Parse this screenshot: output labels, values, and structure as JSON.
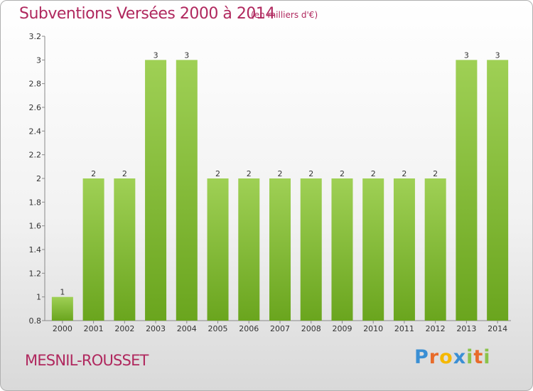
{
  "header": {
    "title": "Subventions Versées 2000 à 2014",
    "subtitle": "(en milliers d'€)"
  },
  "footer": {
    "commune": "MESNIL-ROUSSET",
    "logo": "Proxiti"
  },
  "colors": {
    "title": "#b0285e",
    "bar_top": "#9fd055",
    "bar_bottom": "#6aa51e"
  },
  "chart_data": {
    "type": "bar",
    "categories": [
      "2000",
      "2001",
      "2002",
      "2003",
      "2004",
      "2005",
      "2006",
      "2007",
      "2008",
      "2009",
      "2010",
      "2011",
      "2012",
      "2013",
      "2014"
    ],
    "values": [
      1,
      2,
      2,
      3,
      3,
      2,
      2,
      2,
      2,
      2,
      2,
      2,
      2,
      3,
      3
    ],
    "data_labels": [
      "1",
      "2",
      "2",
      "3",
      "3",
      "2",
      "2",
      "2",
      "2",
      "2",
      "2",
      "2",
      "2",
      "3",
      "3"
    ],
    "yticks": [
      "0.8",
      "1",
      "1.2",
      "1.4",
      "1.6",
      "1.8",
      "2",
      "2.2",
      "2.4",
      "2.6",
      "2.8",
      "3",
      "3.2"
    ],
    "ylim": [
      0.8,
      3.2
    ],
    "grid": false,
    "legend": "none"
  }
}
